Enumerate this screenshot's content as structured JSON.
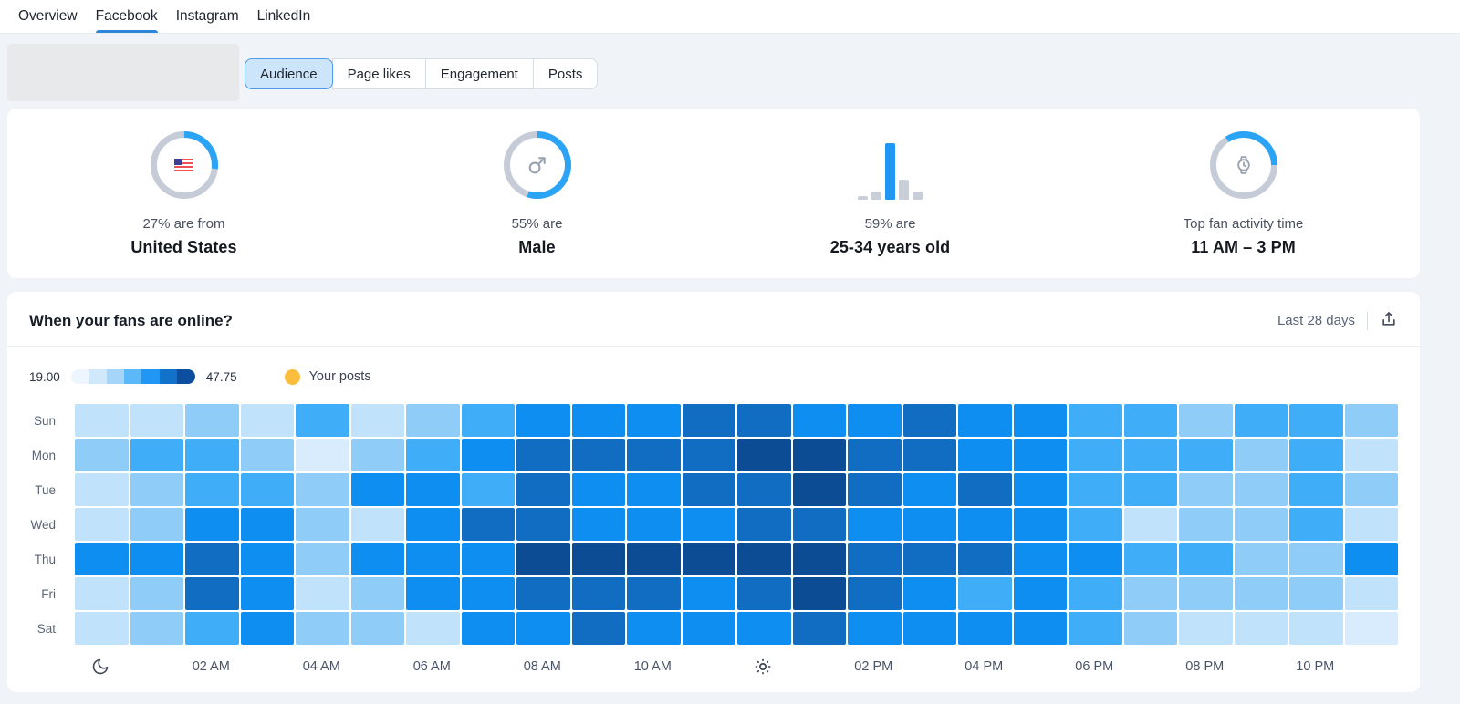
{
  "nav": {
    "tabs": [
      {
        "label": "Overview",
        "active": false
      },
      {
        "label": "Facebook",
        "active": true
      },
      {
        "label": "Instagram",
        "active": false
      },
      {
        "label": "LinkedIn",
        "active": false
      }
    ]
  },
  "subnav": {
    "tabs": [
      "Audience",
      "Page likes",
      "Engagement",
      "Posts"
    ],
    "selected": "Audience"
  },
  "stats": {
    "accent_color": "#2ba4f6",
    "ring_color": "#c5cbd7",
    "bar_gray": "#c9cfd9",
    "bar_blue": "#2196f3",
    "items": [
      {
        "kind": "donut",
        "arc_start": 0,
        "arc_end": 97,
        "icon": "us-flag-icon",
        "line1": "27% are from",
        "line2": "United States"
      },
      {
        "kind": "donut",
        "arc_start": 0,
        "arc_end": 198,
        "icon": "male-icon",
        "line1": "55% are",
        "line2": "Male"
      },
      {
        "kind": "bars",
        "bars": [
          6,
          14,
          100,
          36,
          14
        ],
        "highlight_index": 2,
        "line1": "59% are",
        "line2": "25-34 years old"
      },
      {
        "kind": "donut",
        "arc_start": -33,
        "arc_end": 90,
        "icon": "watch-icon",
        "line1": "Top fan activity time",
        "line2": "11 AM – 3 PM"
      }
    ]
  },
  "heatmap_card": {
    "title": "When your fans are online?",
    "range_label": "Last 28 days",
    "legend": {
      "min": "19.00",
      "max": "47.75",
      "posts_label": "Your posts",
      "posts_color": "#fbbd3c",
      "scale_colors": [
        "#edf6fe",
        "#cfe8fc",
        "#a5d6fa",
        "#5cb8f8",
        "#2196f3",
        "#1272c9",
        "#0d4f9e"
      ]
    },
    "chart_data": {
      "type": "heatmap",
      "title": "When your fans are online?",
      "value_range": [
        19.0,
        47.75
      ],
      "rows": [
        "Sun",
        "Mon",
        "Tue",
        "Wed",
        "Thu",
        "Fri",
        "Sat"
      ],
      "columns_hours": 24,
      "x_tick_labels": [
        "02 AM",
        "04 AM",
        "06 AM",
        "08 AM",
        "10 AM",
        "02 PM",
        "04 PM",
        "06 PM",
        "08 PM",
        "10 PM"
      ],
      "level_palette": {
        "1": "#d9ecfd",
        "2": "#c0e2fb",
        "3": "#8fcdf8",
        "4": "#3fadf7",
        "5": "#0d8ef0",
        "6": "#106dc2",
        "7": "#0b4c94"
      },
      "levels": [
        [
          2,
          2,
          3,
          2,
          4,
          2,
          3,
          4,
          5,
          5,
          5,
          6,
          6,
          5,
          5,
          6,
          5,
          5,
          4,
          4,
          3,
          4,
          4,
          3
        ],
        [
          3,
          4,
          4,
          3,
          1,
          3,
          4,
          5,
          6,
          6,
          6,
          6,
          7,
          7,
          6,
          6,
          5,
          5,
          4,
          4,
          4,
          3,
          4,
          2
        ],
        [
          2,
          3,
          4,
          4,
          3,
          5,
          5,
          4,
          6,
          5,
          5,
          6,
          6,
          7,
          6,
          5,
          6,
          5,
          4,
          4,
          3,
          3,
          4,
          3
        ],
        [
          2,
          3,
          5,
          5,
          3,
          2,
          5,
          6,
          6,
          5,
          5,
          5,
          6,
          6,
          5,
          5,
          5,
          5,
          4,
          2,
          3,
          3,
          4,
          2
        ],
        [
          5,
          5,
          6,
          5,
          3,
          5,
          5,
          5,
          7,
          7,
          7,
          7,
          7,
          7,
          6,
          6,
          6,
          5,
          5,
          4,
          4,
          3,
          3,
          5
        ],
        [
          2,
          3,
          6,
          5,
          2,
          3,
          5,
          5,
          6,
          6,
          6,
          5,
          6,
          7,
          6,
          5,
          4,
          5,
          4,
          3,
          3,
          3,
          3,
          2
        ],
        [
          2,
          3,
          4,
          5,
          3,
          3,
          2,
          5,
          5,
          6,
          5,
          5,
          5,
          6,
          5,
          5,
          5,
          5,
          4,
          3,
          2,
          2,
          2,
          1
        ]
      ],
      "axis": {
        "moon_col": 0,
        "sun_col": 12,
        "labels": [
          {
            "text": "02 AM",
            "col": 2
          },
          {
            "text": "04 AM",
            "col": 4
          },
          {
            "text": "06 AM",
            "col": 6
          },
          {
            "text": "08 AM",
            "col": 8
          },
          {
            "text": "10 AM",
            "col": 10
          },
          {
            "text": "02 PM",
            "col": 14
          },
          {
            "text": "04 PM",
            "col": 16
          },
          {
            "text": "06 PM",
            "col": 18
          },
          {
            "text": "08 PM",
            "col": 20
          },
          {
            "text": "10 PM",
            "col": 22
          }
        ]
      }
    }
  }
}
